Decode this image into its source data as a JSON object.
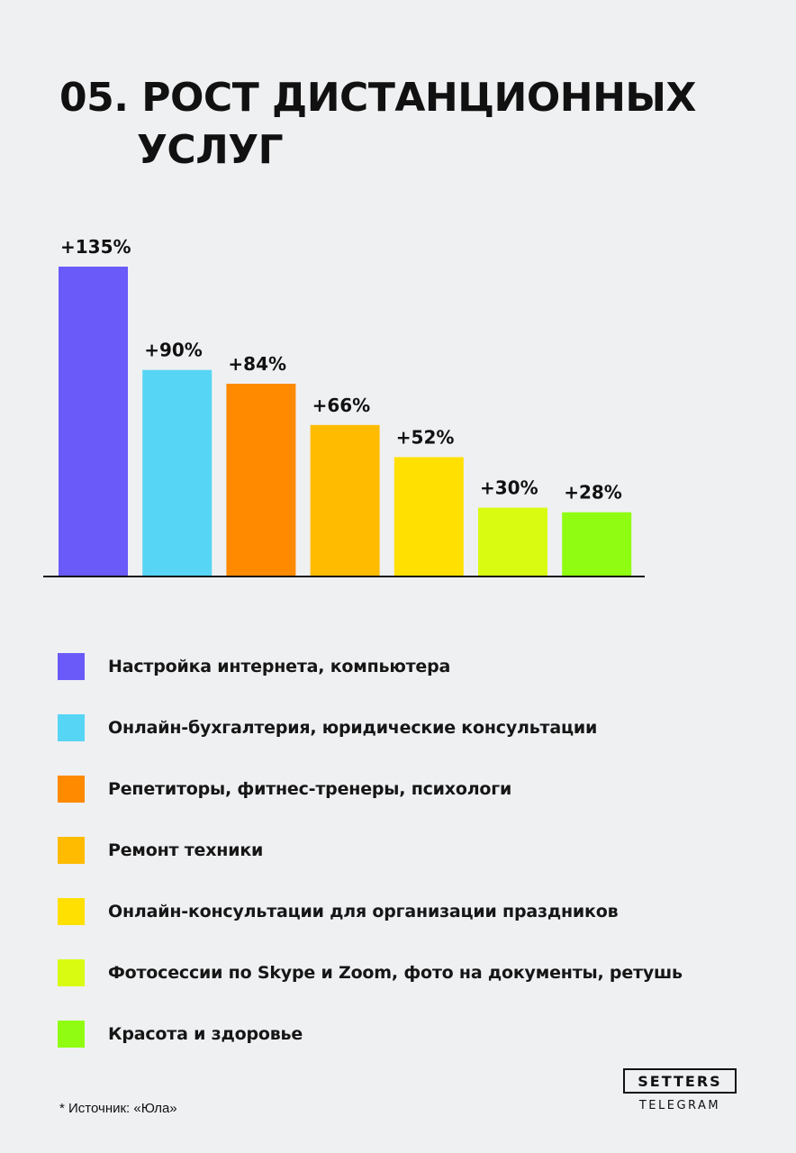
{
  "header": {
    "title_line1": "05. РОСТ ДИСТАНЦИОННЫХ",
    "title_line2": "УСЛУГ"
  },
  "chart_data": {
    "type": "bar",
    "title": "05. РОСТ ДИСТАНЦИОННЫХ УСЛУГ",
    "unit": "%",
    "categories": [
      "Настройка интернета, компьютера",
      "Онлайн-бухгалтерия, юридические консультации",
      "Репетиторы, фитнес-тренеры, психологи",
      "Ремонт техники",
      "Онлайн-консультации для организации праздников",
      "Фотосессии по Skype и Zoom, фото на документы, ретушь",
      "Красота и здоровье"
    ],
    "values": [
      135,
      90,
      84,
      66,
      52,
      30,
      28
    ],
    "value_labels": [
      "+135%",
      "+90%",
      "+84%",
      "+66%",
      "+52%",
      "+30%",
      "+28%"
    ],
    "colors": [
      "#6a5af9",
      "#56d5f5",
      "#ff8a00",
      "#ffbb00",
      "#ffe000",
      "#d9fb12",
      "#8ffc12"
    ],
    "ylim": [
      0,
      135
    ],
    "legend_position": "bottom",
    "grid": false
  },
  "legend": {
    "items": [
      {
        "label": "Настройка интернета, компьютера",
        "color": "#6a5af9"
      },
      {
        "label": "Онлайн-бухгалтерия, юридические консультации",
        "color": "#56d5f5"
      },
      {
        "label": "Репетиторы, фитнес-тренеры, психологи",
        "color": "#ff8a00"
      },
      {
        "label": "Ремонт техники",
        "color": "#ffbb00"
      },
      {
        "label": "Онлайн-консультации для организации праздников",
        "color": "#ffe000"
      },
      {
        "label": "Фотосессии по Skype и Zoom, фото на документы, ретушь",
        "color": "#d9fb12"
      },
      {
        "label": "Красота и здоровье",
        "color": "#8ffc12"
      }
    ]
  },
  "footer": {
    "source": "* Источник: «Юла»",
    "logo_main": "SETTERS",
    "logo_sub": "TELEGRAM"
  }
}
